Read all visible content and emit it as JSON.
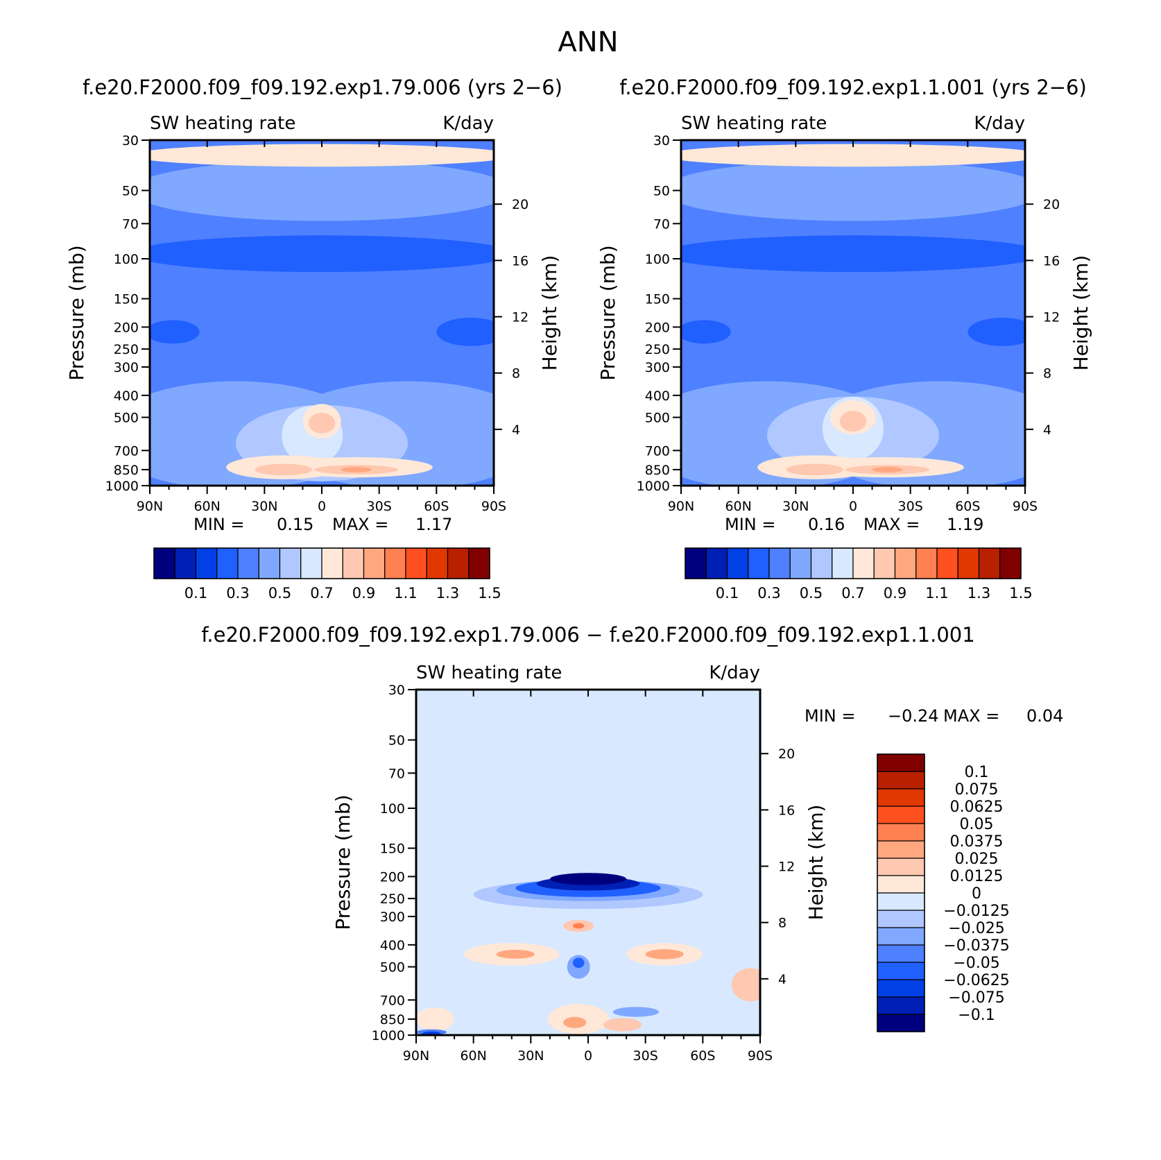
{
  "page_title": "ANN",
  "chart_data": [
    {
      "type": "heatmap",
      "subtype": "filled-contour",
      "case": "f.e20.F2000.f09_f09.192.exp1.79.006 (yrs 2-6)",
      "title_display": "f.e20.F2000.f09_f09.192.exp1.79.006 (yrs 2−6)",
      "left_label": "SW heating rate",
      "units": "K/day",
      "ylabel": "Pressure (mb)",
      "y2label": "Height (km)",
      "x_ticks": [
        "90N",
        "60N",
        "30N",
        "0",
        "30S",
        "60S",
        "90S"
      ],
      "x_values": [
        90,
        60,
        30,
        0,
        -30,
        -60,
        -90
      ],
      "y_ticks": [
        30,
        50,
        70,
        100,
        150,
        200,
        250,
        300,
        400,
        500,
        700,
        850,
        1000
      ],
      "y2_ticks": [
        20,
        16,
        12,
        8,
        4
      ],
      "min_label": "MIN =",
      "min_value": "0.15",
      "max_label": "MAX =",
      "max_value": "1.17",
      "levels": [
        "0.1",
        "0.3",
        "0.5",
        "0.7",
        "0.9",
        "1.1",
        "1.3",
        "1.5"
      ],
      "colors": [
        "#00007f",
        "#0020b5",
        "#0040e5",
        "#2060ff",
        "#4f80ff",
        "#80a8ff",
        "#b0c8ff",
        "#d8e8ff",
        "#ffe8d8",
        "#ffc8b0",
        "#ffa880",
        "#ff8050",
        "#ff5020",
        "#e03800",
        "#b82000",
        "#800000"
      ],
      "field": {
        "background": 4,
        "features": [
          {
            "lat": 45,
            "p": 600,
            "rlat": 70,
            "rp": 600,
            "level": 5
          },
          {
            "lat": -45,
            "p": 600,
            "rlat": 70,
            "rp": 600,
            "level": 5
          },
          {
            "lat": 0,
            "p": 650,
            "rlat": 45,
            "rp": 480,
            "level": 6
          },
          {
            "lat": 5,
            "p": 600,
            "rlat": 16,
            "rp": 350,
            "level": 7
          },
          {
            "lat": 20,
            "p": 830,
            "rlat": 30,
            "rp": 200,
            "level": 8
          },
          {
            "lat": -18,
            "p": 830,
            "rlat": 40,
            "rp": 170,
            "level": 8
          },
          {
            "lat": 0,
            "p": 520,
            "rlat": 10,
            "rp": 180,
            "level": 8
          },
          {
            "lat": 20,
            "p": 850,
            "rlat": 15,
            "rp": 100,
            "level": 9
          },
          {
            "lat": -18,
            "p": 850,
            "rlat": 22,
            "rp": 80,
            "level": 9
          },
          {
            "lat": 0,
            "p": 530,
            "rlat": 7,
            "rp": 110,
            "level": 9
          },
          {
            "lat": -18,
            "p": 850,
            "rlat": 8,
            "rp": 40,
            "level": 10
          },
          {
            "lat": 78,
            "p": 210,
            "rlat": 14,
            "rp": 50,
            "level": 3
          },
          {
            "lat": -78,
            "p": 210,
            "rlat": 18,
            "rp": 60,
            "level": 3
          },
          {
            "lat": 0,
            "p": 95,
            "rlat": 100,
            "rp": 35,
            "level": 3
          },
          {
            "lat": 0,
            "p": 50,
            "rlat": 100,
            "rp": 30,
            "level": 5
          },
          {
            "lat": 0,
            "p": 35,
            "rlat": 100,
            "rp": 8,
            "level": 8
          }
        ]
      }
    },
    {
      "type": "heatmap",
      "subtype": "filled-contour",
      "case": "f.e20.F2000.f09_f09.192.exp1.1.001 (yrs 2-6)",
      "title_display": "f.e20.F2000.f09_f09.192.exp1.1.001 (yrs 2−6)",
      "left_label": "SW heating rate",
      "units": "K/day",
      "ylabel": "Pressure (mb)",
      "y2label": "Height (km)",
      "x_ticks": [
        "90N",
        "60N",
        "30N",
        "0",
        "30S",
        "60S",
        "90S"
      ],
      "x_values": [
        90,
        60,
        30,
        0,
        -30,
        -60,
        -90
      ],
      "y_ticks": [
        30,
        50,
        70,
        100,
        150,
        200,
        250,
        300,
        400,
        500,
        700,
        850,
        1000
      ],
      "y2_ticks": [
        20,
        16,
        12,
        8,
        4
      ],
      "min_label": "MIN =",
      "min_value": "0.16",
      "max_label": "MAX =",
      "max_value": "1.19",
      "levels": [
        "0.1",
        "0.3",
        "0.5",
        "0.7",
        "0.9",
        "1.1",
        "1.3",
        "1.5"
      ],
      "colors": [
        "#00007f",
        "#0020b5",
        "#0040e5",
        "#2060ff",
        "#4f80ff",
        "#80a8ff",
        "#b0c8ff",
        "#d8e8ff",
        "#ffe8d8",
        "#ffc8b0",
        "#ffa880",
        "#ff8050",
        "#ff5020",
        "#e03800",
        "#b82000",
        "#800000"
      ],
      "field": {
        "background": 4,
        "features": [
          {
            "lat": 45,
            "p": 600,
            "rlat": 70,
            "rp": 600,
            "level": 5
          },
          {
            "lat": -45,
            "p": 600,
            "rlat": 70,
            "rp": 600,
            "level": 5
          },
          {
            "lat": 0,
            "p": 600,
            "rlat": 45,
            "rp": 450,
            "level": 6
          },
          {
            "lat": 0,
            "p": 560,
            "rlat": 16,
            "rp": 350,
            "level": 7
          },
          {
            "lat": 20,
            "p": 830,
            "rlat": 30,
            "rp": 200,
            "level": 8
          },
          {
            "lat": -18,
            "p": 830,
            "rlat": 40,
            "rp": 170,
            "level": 8
          },
          {
            "lat": 0,
            "p": 500,
            "rlat": 12,
            "rp": 170,
            "level": 8
          },
          {
            "lat": 20,
            "p": 850,
            "rlat": 15,
            "rp": 100,
            "level": 9
          },
          {
            "lat": -18,
            "p": 850,
            "rlat": 22,
            "rp": 80,
            "level": 9
          },
          {
            "lat": 0,
            "p": 520,
            "rlat": 7,
            "rp": 110,
            "level": 9
          },
          {
            "lat": -18,
            "p": 850,
            "rlat": 8,
            "rp": 40,
            "level": 10
          },
          {
            "lat": 78,
            "p": 210,
            "rlat": 14,
            "rp": 50,
            "level": 3
          },
          {
            "lat": -78,
            "p": 210,
            "rlat": 18,
            "rp": 60,
            "level": 3
          },
          {
            "lat": 0,
            "p": 95,
            "rlat": 100,
            "rp": 35,
            "level": 3
          },
          {
            "lat": 0,
            "p": 50,
            "rlat": 100,
            "rp": 30,
            "level": 5
          },
          {
            "lat": 0,
            "p": 35,
            "rlat": 100,
            "rp": 8,
            "level": 8
          }
        ]
      }
    },
    {
      "type": "heatmap",
      "subtype": "filled-contour",
      "case": "f.e20.F2000.f09_f09.192.exp1.79.006 - f.e20.F2000.f09_f09.192.exp1.1.001",
      "title_display": "f.e20.F2000.f09_f09.192.exp1.79.006 − f.e20.F2000.f09_f09.192.exp1.1.001",
      "left_label": "SW heating rate",
      "units": "K/day",
      "ylabel": "Pressure (mb)",
      "y2label": "Height (km)",
      "x_ticks": [
        "90N",
        "60N",
        "30N",
        "0",
        "30S",
        "60S",
        "90S"
      ],
      "x_values": [
        90,
        60,
        30,
        0,
        -30,
        -60,
        -90
      ],
      "y_ticks": [
        30,
        50,
        70,
        100,
        150,
        200,
        250,
        300,
        400,
        500,
        700,
        850,
        1000
      ],
      "y2_ticks": [
        20,
        16,
        12,
        8,
        4
      ],
      "min_label": "MIN =",
      "min_value": "−0.24",
      "max_label": "MAX =",
      "max_value": "0.04",
      "levels": [
        "−0.1",
        "−0.075",
        "−0.0625",
        "−0.05",
        "−0.0375",
        "−0.025",
        "−0.0125",
        "0",
        "0.0125",
        "0.025",
        "0.0375",
        "0.05",
        "0.0625",
        "0.075",
        "0.1"
      ],
      "colors": [
        "#00007f",
        "#0020b5",
        "#0040e5",
        "#2060ff",
        "#4f80ff",
        "#80a8ff",
        "#b0c8ff",
        "#d8e8ff",
        "#ffe8d8",
        "#ffc8b0",
        "#ffa880",
        "#ff8050",
        "#ff5020",
        "#e03800",
        "#b82000",
        "#800000"
      ],
      "field": {
        "background": 7,
        "features": [
          {
            "lat": 0,
            "p": 240,
            "rlat": 60,
            "rp": 70,
            "level": 6
          },
          {
            "lat": 0,
            "p": 230,
            "rlat": 48,
            "rp": 50,
            "level": 5
          },
          {
            "lat": 0,
            "p": 225,
            "rlat": 38,
            "rp": 40,
            "level": 3
          },
          {
            "lat": 0,
            "p": 215,
            "rlat": 27,
            "rp": 30,
            "level": 1
          },
          {
            "lat": 0,
            "p": 205,
            "rlat": 20,
            "rp": 25,
            "level": 0
          },
          {
            "lat": 5,
            "p": 500,
            "rlat": 6,
            "rp": 120,
            "level": 5
          },
          {
            "lat": 5,
            "p": 480,
            "rlat": 3,
            "rp": 50,
            "level": 3
          },
          {
            "lat": -25,
            "p": 790,
            "rlat": 12,
            "rp": 80,
            "level": 5
          },
          {
            "lat": 40,
            "p": 440,
            "rlat": 25,
            "rp": 100,
            "level": 8
          },
          {
            "lat": 38,
            "p": 440,
            "rlat": 10,
            "rp": 40,
            "level": 10
          },
          {
            "lat": -40,
            "p": 440,
            "rlat": 20,
            "rp": 100,
            "level": 8
          },
          {
            "lat": -40,
            "p": 440,
            "rlat": 10,
            "rp": 45,
            "level": 10
          },
          {
            "lat": 5,
            "p": 850,
            "rlat": 16,
            "rp": 260,
            "level": 8
          },
          {
            "lat": 7,
            "p": 880,
            "rlat": 6,
            "rp": 100,
            "level": 10
          },
          {
            "lat": -18,
            "p": 900,
            "rlat": 10,
            "rp": 120,
            "level": 9
          },
          {
            "lat": 80,
            "p": 850,
            "rlat": 10,
            "rp": 200,
            "level": 8
          },
          {
            "lat": -85,
            "p": 600,
            "rlat": 10,
            "rp": 200,
            "level": 9
          },
          {
            "lat": 82,
            "p": 970,
            "rlat": 8,
            "rp": 50,
            "level": 4
          },
          {
            "lat": 82,
            "p": 990,
            "rlat": 5,
            "rp": 30,
            "level": 2
          },
          {
            "lat": 5,
            "p": 330,
            "rlat": 8,
            "rp": 40,
            "level": 9
          },
          {
            "lat": 5,
            "p": 330,
            "rlat": 3,
            "rp": 15,
            "level": 11
          }
        ]
      }
    }
  ]
}
